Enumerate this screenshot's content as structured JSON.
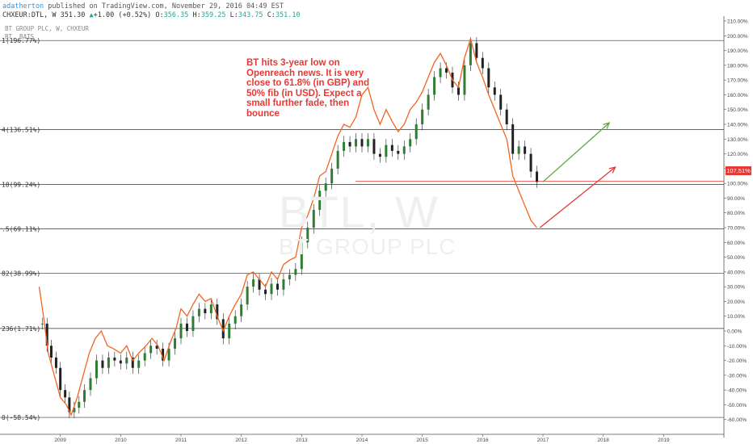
{
  "header": {
    "author": "adatherton",
    "published": " published on TradingView.com, November 29, 2016 04:49 EST",
    "symbol": "CHXEUR:DTL, W",
    "last": "351.30",
    "change": "+1.00 (+0.52%)",
    "open_label": "O:",
    "open": "356.35",
    "high_label": "H:",
    "high": "359.25",
    "low_label": "L:",
    "low": "343.75",
    "close_label": "C:",
    "close": "351.10",
    "study1": "BT GROUP PLC, W, CHXEUR",
    "study2": "BT, BATS"
  },
  "annotation": "BT hits 3-year low on Openreach news. It is very close to 61.8% (in GBP) and 50% fib (in USD). Expect a small further fade, then bounce",
  "watermark": {
    "symbol": "BTL, W",
    "name": "BT GROUP PLC"
  },
  "price_tag": "107.51%",
  "colors": {
    "fib_line": "#333333",
    "compare_line": "#f26522",
    "candle_up": "#2e7d32",
    "candle_down": "#222222",
    "arrow_green": "#5fa83a",
    "arrow_red": "#e53935",
    "hline": "#e53935"
  },
  "chart_data": {
    "type": "line",
    "y_axis": {
      "min": -70,
      "max": 210,
      "step": 10,
      "suffix": "%"
    },
    "x_axis": {
      "min": 2008.0,
      "max": 2020.0,
      "ticks": [
        "2009",
        "2010",
        "2011",
        "2012",
        "2013",
        "2014",
        "2015",
        "2016",
        "2017",
        "2018",
        "2019"
      ]
    },
    "fib_levels": [
      {
        "label": "1(196.77%)",
        "value": 196.77
      },
      {
        "label": "4(136.51%)",
        "value": 136.51
      },
      {
        "label": "18(99.24%)",
        "value": 99.24
      },
      {
        "label": ".5(69.11%)",
        "value": 69.11
      },
      {
        "label": "82(38.99%)",
        "value": 38.99
      },
      {
        "label": "236(1.71%)",
        "value": 1.71
      },
      {
        "label": "0(-58.54%)",
        "value": -58.54
      }
    ],
    "horizontal_line": 101.5,
    "series": [
      {
        "kind": "candles",
        "points": [
          [
            2008.7,
            5
          ],
          [
            2008.78,
            -10
          ],
          [
            2008.85,
            -18
          ],
          [
            2008.93,
            -25
          ],
          [
            2009.0,
            -40
          ],
          [
            2009.08,
            -45
          ],
          [
            2009.15,
            -55
          ],
          [
            2009.23,
            -52
          ],
          [
            2009.31,
            -48
          ],
          [
            2009.4,
            -40
          ],
          [
            2009.5,
            -32
          ],
          [
            2009.6,
            -20
          ],
          [
            2009.7,
            -25
          ],
          [
            2009.8,
            -18
          ],
          [
            2009.9,
            -20
          ],
          [
            2010.0,
            -22
          ],
          [
            2010.1,
            -18
          ],
          [
            2010.2,
            -25
          ],
          [
            2010.3,
            -20
          ],
          [
            2010.4,
            -15
          ],
          [
            2010.5,
            -10
          ],
          [
            2010.6,
            -12
          ],
          [
            2010.7,
            -20
          ],
          [
            2010.8,
            -12
          ],
          [
            2010.9,
            -5
          ],
          [
            2011.0,
            5
          ],
          [
            2011.1,
            0
          ],
          [
            2011.2,
            10
          ],
          [
            2011.3,
            15
          ],
          [
            2011.4,
            12
          ],
          [
            2011.5,
            18
          ],
          [
            2011.6,
            8
          ],
          [
            2011.7,
            -5
          ],
          [
            2011.8,
            5
          ],
          [
            2011.9,
            10
          ],
          [
            2012.0,
            18
          ],
          [
            2012.1,
            30
          ],
          [
            2012.2,
            35
          ],
          [
            2012.3,
            28
          ],
          [
            2012.4,
            25
          ],
          [
            2012.5,
            32
          ],
          [
            2012.6,
            28
          ],
          [
            2012.7,
            35
          ],
          [
            2012.8,
            38
          ],
          [
            2012.9,
            42
          ],
          [
            2013.0,
            60
          ],
          [
            2013.1,
            70
          ],
          [
            2013.2,
            82
          ],
          [
            2013.3,
            95
          ],
          [
            2013.4,
            100
          ],
          [
            2013.5,
            110
          ],
          [
            2013.6,
            122
          ],
          [
            2013.7,
            128
          ],
          [
            2013.8,
            125
          ],
          [
            2013.9,
            130
          ],
          [
            2014.0,
            125
          ],
          [
            2014.1,
            130
          ],
          [
            2014.2,
            120
          ],
          [
            2014.3,
            118
          ],
          [
            2014.4,
            126
          ],
          [
            2014.5,
            122
          ],
          [
            2014.6,
            120
          ],
          [
            2014.7,
            125
          ],
          [
            2014.8,
            130
          ],
          [
            2014.9,
            140
          ],
          [
            2015.0,
            150
          ],
          [
            2015.1,
            160
          ],
          [
            2015.2,
            172
          ],
          [
            2015.3,
            178
          ],
          [
            2015.4,
            175
          ],
          [
            2015.5,
            165
          ],
          [
            2015.6,
            160
          ],
          [
            2015.7,
            180
          ],
          [
            2015.8,
            195
          ],
          [
            2015.9,
            185
          ],
          [
            2016.0,
            178
          ],
          [
            2016.1,
            165
          ],
          [
            2016.2,
            160
          ],
          [
            2016.3,
            150
          ],
          [
            2016.4,
            140
          ],
          [
            2016.5,
            120
          ],
          [
            2016.6,
            125
          ],
          [
            2016.7,
            120
          ],
          [
            2016.8,
            108
          ],
          [
            2016.9,
            101
          ]
        ]
      },
      {
        "kind": "line",
        "points": [
          [
            2008.65,
            30
          ],
          [
            2008.72,
            10
          ],
          [
            2008.8,
            -15
          ],
          [
            2008.9,
            -30
          ],
          [
            2009.0,
            -45
          ],
          [
            2009.1,
            -50
          ],
          [
            2009.18,
            -57
          ],
          [
            2009.28,
            -45
          ],
          [
            2009.38,
            -30
          ],
          [
            2009.48,
            -15
          ],
          [
            2009.58,
            -5
          ],
          [
            2009.68,
            0
          ],
          [
            2009.78,
            -10
          ],
          [
            2009.88,
            -12
          ],
          [
            2010.0,
            -15
          ],
          [
            2010.1,
            -10
          ],
          [
            2010.2,
            -20
          ],
          [
            2010.3,
            -15
          ],
          [
            2010.42,
            -10
          ],
          [
            2010.52,
            -5
          ],
          [
            2010.62,
            -10
          ],
          [
            2010.72,
            -20
          ],
          [
            2010.82,
            -8
          ],
          [
            2010.92,
            2
          ],
          [
            2011.0,
            15
          ],
          [
            2011.1,
            10
          ],
          [
            2011.2,
            18
          ],
          [
            2011.3,
            25
          ],
          [
            2011.4,
            20
          ],
          [
            2011.5,
            22
          ],
          [
            2011.6,
            10
          ],
          [
            2011.7,
            0
          ],
          [
            2011.8,
            10
          ],
          [
            2011.9,
            18
          ],
          [
            2012.0,
            25
          ],
          [
            2012.1,
            38
          ],
          [
            2012.2,
            40
          ],
          [
            2012.3,
            35
          ],
          [
            2012.4,
            30
          ],
          [
            2012.5,
            40
          ],
          [
            2012.6,
            35
          ],
          [
            2012.7,
            45
          ],
          [
            2012.8,
            48
          ],
          [
            2012.9,
            50
          ],
          [
            2013.0,
            70
          ],
          [
            2013.1,
            78
          ],
          [
            2013.2,
            90
          ],
          [
            2013.3,
            105
          ],
          [
            2013.4,
            108
          ],
          [
            2013.5,
            120
          ],
          [
            2013.6,
            132
          ],
          [
            2013.7,
            140
          ],
          [
            2013.8,
            138
          ],
          [
            2013.9,
            145
          ],
          [
            2014.0,
            160
          ],
          [
            2014.1,
            165
          ],
          [
            2014.2,
            150
          ],
          [
            2014.3,
            140
          ],
          [
            2014.4,
            150
          ],
          [
            2014.5,
            142
          ],
          [
            2014.6,
            135
          ],
          [
            2014.7,
            140
          ],
          [
            2014.8,
            150
          ],
          [
            2014.9,
            155
          ],
          [
            2015.0,
            162
          ],
          [
            2015.1,
            172
          ],
          [
            2015.2,
            182
          ],
          [
            2015.3,
            188
          ],
          [
            2015.4,
            180
          ],
          [
            2015.5,
            170
          ],
          [
            2015.6,
            165
          ],
          [
            2015.7,
            185
          ],
          [
            2015.8,
            198
          ],
          [
            2015.9,
            182
          ],
          [
            2016.0,
            172
          ],
          [
            2016.1,
            160
          ],
          [
            2016.2,
            150
          ],
          [
            2016.3,
            140
          ],
          [
            2016.4,
            130
          ],
          [
            2016.5,
            105
          ],
          [
            2016.6,
            95
          ],
          [
            2016.7,
            85
          ],
          [
            2016.8,
            75
          ],
          [
            2016.9,
            70
          ]
        ]
      }
    ],
    "arrows": [
      {
        "color": "#5fa83a",
        "from": [
          2017.0,
          101
        ],
        "to": [
          2018.1,
          141
        ]
      },
      {
        "color": "#e53935",
        "from": [
          2016.95,
          70
        ],
        "to": [
          2018.2,
          111
        ]
      }
    ]
  }
}
